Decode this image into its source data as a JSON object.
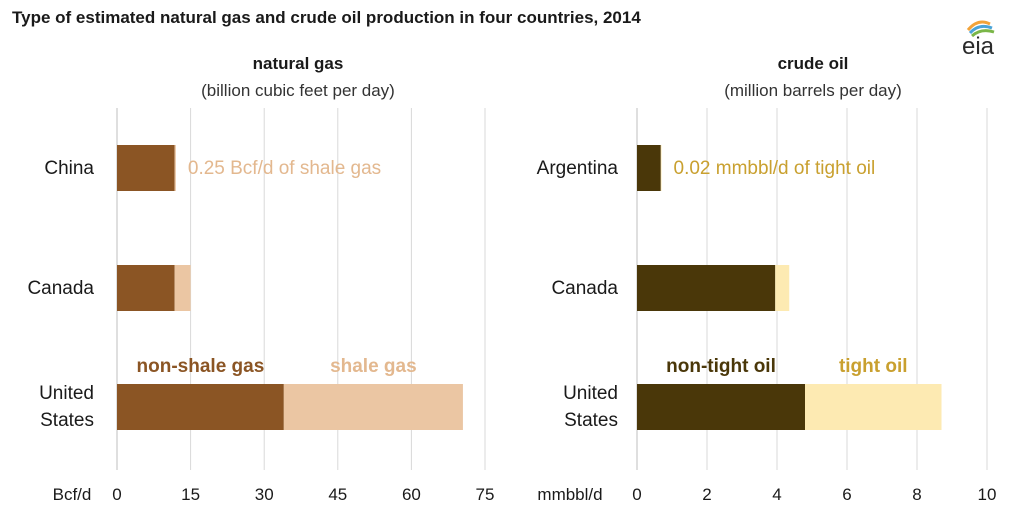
{
  "title": "Type of estimated natural gas and crude oil production in four countries, 2014",
  "logo_text": "eia",
  "colors": {
    "non_shale_gas": "#8b5524",
    "shale_gas": "#ebc6a3",
    "non_tight_oil": "#4a3709",
    "tight_oil": "#fdeab2",
    "gas_annotation": "#e3b88f",
    "oil_annotation": "#c9a02f",
    "grid": "#d9d9d9",
    "text": "#1a1a1a"
  },
  "chart_data": [
    {
      "type": "bar",
      "stacked": true,
      "orientation": "horizontal",
      "title": "natural gas",
      "subtitle": "(billion cubic feet per day)",
      "unit_label": "Bcf/d",
      "categories": [
        "China",
        "Canada",
        "United States"
      ],
      "series": [
        {
          "name": "non-shale gas",
          "values": [
            11.75,
            11.75,
            34
          ],
          "color_key": "non_shale_gas"
        },
        {
          "name": "shale gas",
          "values": [
            0.25,
            3.25,
            36.5
          ],
          "color_key": "shale_gas"
        }
      ],
      "xlim": [
        0,
        75
      ],
      "ticks": [
        0,
        15,
        30,
        45,
        60,
        75
      ],
      "annotation": "0.25 Bcf/d of shale gas",
      "grid": true
    },
    {
      "type": "bar",
      "stacked": true,
      "orientation": "horizontal",
      "title": "crude oil",
      "subtitle": "(million barrels per day)",
      "unit_label": "mmbbl/d",
      "categories": [
        "Argentina",
        "Canada",
        "United States"
      ],
      "series": [
        {
          "name": "non-tight oil",
          "values": [
            0.68,
            3.95,
            4.8
          ],
          "color_key": "non_tight_oil"
        },
        {
          "name": "tight oil",
          "values": [
            0.02,
            0.4,
            3.9
          ],
          "color_key": "tight_oil"
        }
      ],
      "xlim": [
        0,
        10
      ],
      "ticks": [
        0,
        2,
        4,
        6,
        8,
        10
      ],
      "annotation": "0.02 mmbbl/d of tight oil",
      "grid": true
    }
  ]
}
